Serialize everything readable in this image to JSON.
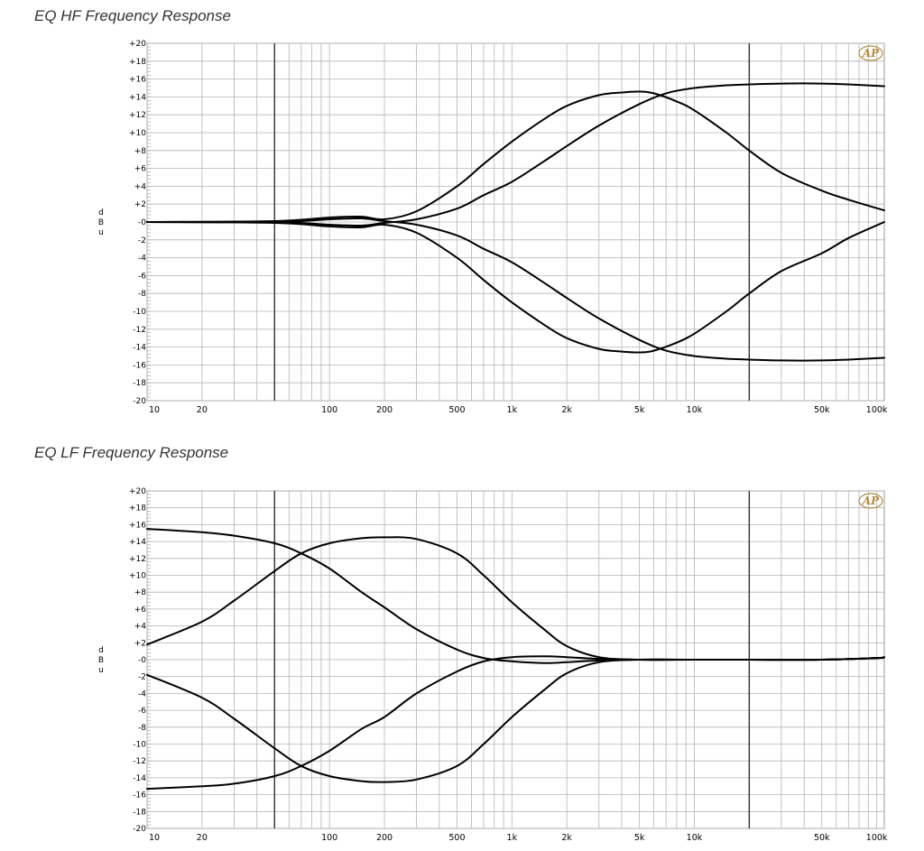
{
  "charts": {
    "hf": {
      "title": "EQ HF Frequency Response"
    },
    "lf": {
      "title": "EQ LF Frequency Response"
    }
  },
  "logo_text": "AP",
  "y_unit_label": [
    "d",
    "B",
    "u"
  ],
  "chart_data": [
    {
      "type": "line",
      "title": "EQ HF Frequency Response",
      "xlabel": "",
      "ylabel": "dBu",
      "x_scale": "log",
      "xlim": [
        10,
        110000
      ],
      "ylim": [
        -20,
        20
      ],
      "grid": true,
      "x_ticks": [
        {
          "value": 10,
          "label": "10"
        },
        {
          "value": 20,
          "label": "20"
        },
        {
          "value": 100,
          "label": "100"
        },
        {
          "value": 200,
          "label": "200"
        },
        {
          "value": 500,
          "label": "500"
        },
        {
          "value": 1000,
          "label": "1k"
        },
        {
          "value": 2000,
          "label": "2k"
        },
        {
          "value": 5000,
          "label": "5k"
        },
        {
          "value": 10000,
          "label": "10k"
        },
        {
          "value": 50000,
          "label": "50k"
        },
        {
          "value": 100000,
          "label": "100k"
        }
      ],
      "y_ticks": [
        "+20",
        "+18",
        "+16",
        "+14",
        "+12",
        "+10",
        "+8",
        "+6",
        "+4",
        "+2",
        "-0",
        "-2",
        "-4",
        "-6",
        "-8",
        "-10",
        "-12",
        "-14",
        "-16",
        "-18",
        "-20"
      ],
      "series": [
        {
          "x": [
            10,
            50,
            100,
            150,
            200,
            300,
            500,
            700,
            1000,
            1500,
            2000,
            3000,
            4000,
            5000,
            6000,
            8000,
            10000,
            15000,
            20000,
            30000,
            50000,
            70000,
            110000
          ],
          "y": [
            0,
            0.1,
            0.5,
            0.6,
            0.3,
            1.2,
            4,
            6.5,
            9,
            11.5,
            13,
            14.2,
            14.5,
            14.6,
            14.4,
            13.5,
            12.5,
            10,
            8,
            5.5,
            3.5,
            2.5,
            1.3
          ]
        },
        {
          "x": [
            10,
            50,
            100,
            150,
            200,
            300,
            500,
            700,
            1000,
            1500,
            2000,
            3000,
            5000,
            7000,
            10000,
            15000,
            20000,
            30000,
            50000,
            70000,
            110000
          ],
          "y": [
            0,
            0,
            -0.3,
            -0.4,
            -0.1,
            0.3,
            1.5,
            3,
            4.5,
            6.8,
            8.5,
            10.8,
            13.2,
            14.4,
            15,
            15.3,
            15.4,
            15.5,
            15.5,
            15.4,
            15.2
          ]
        },
        {
          "x": [
            10,
            50,
            100,
            150,
            200,
            300,
            500,
            700,
            1000,
            1500,
            2000,
            3000,
            4000,
            5000,
            6000,
            8000,
            10000,
            15000,
            20000,
            30000,
            50000,
            70000,
            110000
          ],
          "y": [
            0,
            -0.1,
            -0.5,
            -0.6,
            -0.3,
            -1.2,
            -4,
            -6.5,
            -9,
            -11.5,
            -13,
            -14.2,
            -14.5,
            -14.6,
            -14.4,
            -13.5,
            -12.5,
            -10,
            -8,
            -5.5,
            -3.5,
            -1.8,
            0
          ]
        },
        {
          "x": [
            10,
            50,
            100,
            150,
            200,
            300,
            500,
            700,
            1000,
            1500,
            2000,
            3000,
            5000,
            7000,
            10000,
            15000,
            20000,
            30000,
            50000,
            70000,
            110000
          ],
          "y": [
            0,
            0,
            0.3,
            0.4,
            0.1,
            -0.3,
            -1.5,
            -3,
            -4.5,
            -6.8,
            -8.5,
            -10.8,
            -13.2,
            -14.4,
            -15,
            -15.3,
            -15.4,
            -15.5,
            -15.5,
            -15.4,
            -15.2
          ]
        }
      ]
    },
    {
      "type": "line",
      "title": "EQ LF Frequency Response",
      "xlabel": "",
      "ylabel": "dBu",
      "x_scale": "log",
      "xlim": [
        10,
        110000
      ],
      "ylim": [
        -20,
        20
      ],
      "grid": true,
      "x_ticks": [
        {
          "value": 10,
          "label": "10"
        },
        {
          "value": 20,
          "label": "20"
        },
        {
          "value": 100,
          "label": "100"
        },
        {
          "value": 200,
          "label": "200"
        },
        {
          "value": 500,
          "label": "500"
        },
        {
          "value": 1000,
          "label": "1k"
        },
        {
          "value": 2000,
          "label": "2k"
        },
        {
          "value": 5000,
          "label": "5k"
        },
        {
          "value": 10000,
          "label": "10k"
        },
        {
          "value": 50000,
          "label": "50k"
        },
        {
          "value": 100000,
          "label": "100k"
        }
      ],
      "y_ticks": [
        "+20",
        "+18",
        "+16",
        "+14",
        "+12",
        "+10",
        "+8",
        "+6",
        "+4",
        "+2",
        "-0",
        "-2",
        "-4",
        "-6",
        "-8",
        "-10",
        "-12",
        "-14",
        "-16",
        "-18",
        "-20"
      ],
      "series": [
        {
          "x": [
            10,
            20,
            30,
            50,
            70,
            100,
            150,
            200,
            300,
            500,
            700,
            1000,
            1500,
            2000,
            3000,
            5000,
            10000,
            20000,
            50000,
            100000,
            110000
          ],
          "y": [
            15.5,
            15.1,
            14.7,
            13.8,
            12.6,
            10.8,
            8,
            6.2,
            3.6,
            1.2,
            0.2,
            -0.2,
            -0.4,
            -0.3,
            -0.1,
            0,
            0,
            0,
            0,
            0.2,
            0.3
          ]
        },
        {
          "x": [
            10,
            20,
            30,
            50,
            70,
            100,
            150,
            200,
            300,
            500,
            700,
            1000,
            1500,
            2000,
            3000,
            5000,
            10000,
            20000,
            50000,
            100000,
            110000
          ],
          "y": [
            1.8,
            4.5,
            7,
            10.5,
            12.6,
            13.8,
            14.4,
            14.5,
            14.3,
            12.6,
            10,
            6.8,
            3.6,
            1.6,
            0.3,
            0,
            0,
            0,
            0,
            0.2,
            0.3
          ]
        },
        {
          "x": [
            10,
            20,
            30,
            50,
            70,
            100,
            150,
            200,
            300,
            500,
            700,
            1000,
            1500,
            2000,
            3000,
            5000,
            10000,
            20000,
            50000,
            100000,
            110000
          ],
          "y": [
            -15.3,
            -15,
            -14.7,
            -13.8,
            -12.6,
            -10.8,
            -8.2,
            -6.8,
            -4,
            -1.4,
            -0.2,
            0.3,
            0.4,
            0.3,
            0.1,
            0,
            0,
            0,
            0,
            0.2,
            0.3
          ]
        },
        {
          "x": [
            10,
            20,
            30,
            50,
            70,
            100,
            150,
            200,
            300,
            500,
            700,
            1000,
            1500,
            2000,
            3000,
            5000,
            10000,
            20000,
            50000,
            100000,
            110000
          ],
          "y": [
            -1.8,
            -4.5,
            -7,
            -10.5,
            -12.6,
            -13.8,
            -14.4,
            -14.5,
            -14.2,
            -12.6,
            -10,
            -6.8,
            -3.6,
            -1.6,
            -0.3,
            0,
            0,
            0,
            0,
            0.2,
            0.3
          ]
        }
      ]
    }
  ]
}
